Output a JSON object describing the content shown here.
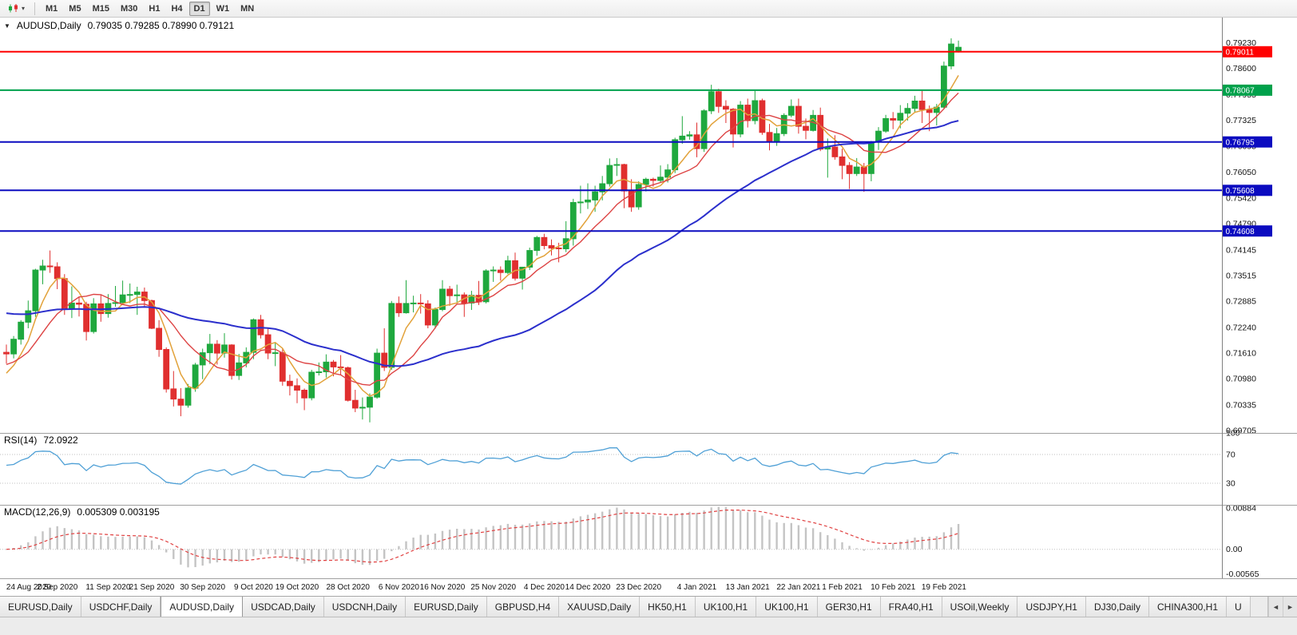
{
  "icons": {
    "dropdown_caret": "▾",
    "title_caret": "▼",
    "scroll_left": "◄",
    "scroll_right": "►"
  },
  "colors": {
    "bull": "#1fa83e",
    "bear": "#e02f2f",
    "axis_text": "#111111",
    "separator": "#a0a0a0"
  },
  "toolbar": {
    "timeframes": [
      {
        "label": "M1"
      },
      {
        "label": "M5"
      },
      {
        "label": "M15"
      },
      {
        "label": "M30"
      },
      {
        "label": "H1"
      },
      {
        "label": "H4"
      },
      {
        "label": "D1",
        "active": true
      },
      {
        "label": "W1"
      },
      {
        "label": "MN"
      }
    ]
  },
  "chart_data": {
    "type": "candlestick",
    "title": "AUDUSD,Daily",
    "quote_line": "0.79035 0.79285 0.78990 0.79121",
    "open": "0.79035",
    "high": "0.79285",
    "low": "0.78990",
    "close": "0.79121",
    "scale": {
      "p_max": 0.7985,
      "p_min": 0.6965
    },
    "y_axis_labels": [
      "0.79230",
      "0.78600",
      "0.77955",
      "0.77325",
      "0.76695",
      "0.76050",
      "0.75420",
      "0.74790",
      "0.74145",
      "0.73515",
      "0.72885",
      "0.72240",
      "0.71610",
      "0.70980",
      "0.70335",
      "0.69705"
    ],
    "hlines": [
      {
        "price": 0.79011,
        "label": "0.79011",
        "color": "#ff0000"
      },
      {
        "price": 0.78067,
        "label": "0.78067",
        "color": "#00a14b"
      },
      {
        "price": 0.76795,
        "label": "0.76795",
        "color": "#0b0bc0"
      },
      {
        "price": 0.75608,
        "label": "0.75608",
        "color": "#0b0bc0"
      },
      {
        "price": 0.74608,
        "label": "0.74608",
        "color": "#0b0bc0"
      }
    ],
    "moving_averages": [
      {
        "period": 5,
        "color": "#e2a23a",
        "width": 1.5,
        "left_start": 0.71
      },
      {
        "period": 10,
        "color": "#dd4343",
        "width": 1.4,
        "left_start": 0.713
      },
      {
        "period": 35,
        "color": "#2b2fcc",
        "width": 2,
        "left_start": 0.7262
      }
    ],
    "date_labels": [
      [
        "24 Aug 2020",
        0
      ],
      [
        "2 Sep 2020",
        7
      ],
      [
        "11 Sep 2020",
        14
      ],
      [
        "21 Sep 2020",
        20
      ],
      [
        "30 Sep 2020",
        27
      ],
      [
        "9 Oct 2020",
        34
      ],
      [
        "19 Oct 2020",
        40
      ],
      [
        "28 Oct 2020",
        47
      ],
      [
        "6 Nov 2020",
        54
      ],
      [
        "16 Nov 2020",
        60
      ],
      [
        "25 Nov 2020",
        67
      ],
      [
        "4 Dec 2020",
        74
      ],
      [
        "14 Dec 2020",
        80
      ],
      [
        "23 Dec 2020",
        87
      ],
      [
        "4 Jan 2021",
        95
      ],
      [
        "13 Jan 2021",
        102
      ],
      [
        "22 Jan 2021",
        109
      ],
      [
        "1 Feb 2021",
        115
      ],
      [
        "10 Feb 2021",
        122
      ],
      [
        "19 Feb 2021",
        129
      ]
    ],
    "candles": [
      [
        0.7163,
        0.7182,
        0.7135,
        0.7159
      ],
      [
        0.7159,
        0.7203,
        0.7148,
        0.7195
      ],
      [
        0.7195,
        0.7242,
        0.7182,
        0.7237
      ],
      [
        0.7237,
        0.729,
        0.7222,
        0.7265
      ],
      [
        0.7265,
        0.7368,
        0.725,
        0.7365
      ],
      [
        0.7365,
        0.739,
        0.733,
        0.7375
      ],
      [
        0.7375,
        0.7413,
        0.7358,
        0.7373
      ],
      [
        0.7373,
        0.7384,
        0.7318,
        0.7344
      ],
      [
        0.7344,
        0.7355,
        0.7255,
        0.727
      ],
      [
        0.727,
        0.7325,
        0.7247,
        0.7284
      ],
      [
        0.7284,
        0.73,
        0.7251,
        0.7281
      ],
      [
        0.7281,
        0.7287,
        0.7192,
        0.7214
      ],
      [
        0.7214,
        0.7296,
        0.7209,
        0.7282
      ],
      [
        0.7282,
        0.7304,
        0.7238,
        0.7258
      ],
      [
        0.7258,
        0.7306,
        0.7248,
        0.7283
      ],
      [
        0.7283,
        0.7326,
        0.7275,
        0.7285
      ],
      [
        0.7285,
        0.7339,
        0.7283,
        0.7304
      ],
      [
        0.7304,
        0.7332,
        0.7284,
        0.7305
      ],
      [
        0.7305,
        0.7324,
        0.7255,
        0.7311
      ],
      [
        0.7311,
        0.7322,
        0.7276,
        0.729
      ],
      [
        0.729,
        0.7292,
        0.722,
        0.7222
      ],
      [
        0.7222,
        0.7242,
        0.7152,
        0.717
      ],
      [
        0.717,
        0.7175,
        0.7064,
        0.7073
      ],
      [
        0.7073,
        0.7117,
        0.703,
        0.7048
      ],
      [
        0.7048,
        0.7075,
        0.7006,
        0.7033
      ],
      [
        0.7033,
        0.7085,
        0.7027,
        0.7075
      ],
      [
        0.7075,
        0.7137,
        0.7066,
        0.7132
      ],
      [
        0.7132,
        0.7172,
        0.7097,
        0.7162
      ],
      [
        0.7162,
        0.7208,
        0.7134,
        0.7183
      ],
      [
        0.7183,
        0.7193,
        0.7133,
        0.7161
      ],
      [
        0.7161,
        0.721,
        0.715,
        0.7181
      ],
      [
        0.7181,
        0.7183,
        0.7096,
        0.7106
      ],
      [
        0.7106,
        0.7159,
        0.7095,
        0.7137
      ],
      [
        0.7137,
        0.7175,
        0.7126,
        0.7163
      ],
      [
        0.7163,
        0.7246,
        0.7146,
        0.7243
      ],
      [
        0.7243,
        0.7255,
        0.7197,
        0.7206
      ],
      [
        0.7206,
        0.7222,
        0.7146,
        0.7161
      ],
      [
        0.7161,
        0.7186,
        0.7129,
        0.7162
      ],
      [
        0.7162,
        0.7172,
        0.7081,
        0.7092
      ],
      [
        0.7092,
        0.7108,
        0.7057,
        0.7081
      ],
      [
        0.7081,
        0.7099,
        0.7038,
        0.707
      ],
      [
        0.707,
        0.7074,
        0.7021,
        0.7051
      ],
      [
        0.7051,
        0.712,
        0.7045,
        0.7114
      ],
      [
        0.7114,
        0.7138,
        0.7106,
        0.7115
      ],
      [
        0.7115,
        0.7158,
        0.7101,
        0.7139
      ],
      [
        0.7139,
        0.7144,
        0.7104,
        0.7127
      ],
      [
        0.7127,
        0.7156,
        0.7107,
        0.7125
      ],
      [
        0.7125,
        0.7128,
        0.7042,
        0.7045
      ],
      [
        0.7045,
        0.7071,
        0.7016,
        0.7026
      ],
      [
        0.7026,
        0.7052,
        0.6998,
        0.7028
      ],
      [
        0.7028,
        0.7062,
        0.6991,
        0.7053
      ],
      [
        0.7053,
        0.7172,
        0.7049,
        0.7161
      ],
      [
        0.7161,
        0.7222,
        0.7117,
        0.7126
      ],
      [
        0.7126,
        0.7289,
        0.712,
        0.7283
      ],
      [
        0.7283,
        0.73,
        0.725,
        0.726
      ],
      [
        0.726,
        0.734,
        0.7258,
        0.7283
      ],
      [
        0.7283,
        0.7302,
        0.7261,
        0.7284
      ],
      [
        0.7284,
        0.7306,
        0.7258,
        0.7282
      ],
      [
        0.7282,
        0.7291,
        0.7222,
        0.723
      ],
      [
        0.723,
        0.7273,
        0.7221,
        0.7268
      ],
      [
        0.7268,
        0.734,
        0.7264,
        0.7318
      ],
      [
        0.7318,
        0.7326,
        0.7277,
        0.7302
      ],
      [
        0.7302,
        0.7329,
        0.7286,
        0.7304
      ],
      [
        0.7304,
        0.731,
        0.725,
        0.7284
      ],
      [
        0.7284,
        0.7314,
        0.7267,
        0.7303
      ],
      [
        0.7303,
        0.7338,
        0.7279,
        0.7287
      ],
      [
        0.7287,
        0.7367,
        0.7283,
        0.7363
      ],
      [
        0.7363,
        0.7374,
        0.7336,
        0.7365
      ],
      [
        0.7365,
        0.7374,
        0.7339,
        0.7359
      ],
      [
        0.7359,
        0.74,
        0.7355,
        0.7388
      ],
      [
        0.7388,
        0.7408,
        0.7339,
        0.7345
      ],
      [
        0.7345,
        0.7373,
        0.7317,
        0.7372
      ],
      [
        0.7372,
        0.742,
        0.7365,
        0.7413
      ],
      [
        0.7413,
        0.7449,
        0.74,
        0.7445
      ],
      [
        0.7445,
        0.7454,
        0.7416,
        0.7425
      ],
      [
        0.7425,
        0.744,
        0.7401,
        0.7419
      ],
      [
        0.7419,
        0.7432,
        0.7384,
        0.7417
      ],
      [
        0.7417,
        0.7485,
        0.7409,
        0.7442
      ],
      [
        0.7442,
        0.754,
        0.7425,
        0.7531
      ],
      [
        0.7531,
        0.7572,
        0.7504,
        0.7532
      ],
      [
        0.7532,
        0.7578,
        0.7515,
        0.7537
      ],
      [
        0.7537,
        0.7572,
        0.7508,
        0.7557
      ],
      [
        0.7557,
        0.7596,
        0.7536,
        0.7577
      ],
      [
        0.7577,
        0.7639,
        0.757,
        0.7622
      ],
      [
        0.7622,
        0.764,
        0.7596,
        0.7624
      ],
      [
        0.7624,
        0.7626,
        0.7517,
        0.7559
      ],
      [
        0.7559,
        0.7588,
        0.7508,
        0.752
      ],
      [
        0.752,
        0.7583,
        0.7513,
        0.7575
      ],
      [
        0.7575,
        0.7592,
        0.7558,
        0.7588
      ],
      [
        0.7588,
        0.7592,
        0.757,
        0.7585
      ],
      [
        0.7585,
        0.7622,
        0.758,
        0.7593
      ],
      [
        0.7593,
        0.7625,
        0.758,
        0.7611
      ],
      [
        0.7611,
        0.769,
        0.7603,
        0.7685
      ],
      [
        0.7685,
        0.7743,
        0.7675,
        0.7694
      ],
      [
        0.7694,
        0.7706,
        0.7685,
        0.7697
      ],
      [
        0.7697,
        0.7727,
        0.7642,
        0.7663
      ],
      [
        0.7663,
        0.776,
        0.7655,
        0.7756
      ],
      [
        0.7756,
        0.782,
        0.7748,
        0.7803
      ],
      [
        0.7803,
        0.781,
        0.7751,
        0.7767
      ],
      [
        0.7767,
        0.7782,
        0.7726,
        0.776
      ],
      [
        0.776,
        0.7763,
        0.7666,
        0.7699
      ],
      [
        0.7699,
        0.778,
        0.7691,
        0.777
      ],
      [
        0.777,
        0.7786,
        0.7715,
        0.7732
      ],
      [
        0.7732,
        0.7805,
        0.7723,
        0.7781
      ],
      [
        0.7781,
        0.7786,
        0.7697,
        0.7703
      ],
      [
        0.7703,
        0.7724,
        0.7659,
        0.7679
      ],
      [
        0.7679,
        0.7714,
        0.767,
        0.77
      ],
      [
        0.77,
        0.775,
        0.7694,
        0.7745
      ],
      [
        0.7745,
        0.7784,
        0.774,
        0.7767
      ],
      [
        0.7767,
        0.7786,
        0.77,
        0.7718
      ],
      [
        0.7718,
        0.7737,
        0.7686,
        0.7708
      ],
      [
        0.7708,
        0.7758,
        0.7705,
        0.7745
      ],
      [
        0.7745,
        0.7764,
        0.7657,
        0.7662
      ],
      [
        0.7662,
        0.7688,
        0.7592,
        0.7667
      ],
      [
        0.7667,
        0.7696,
        0.7636,
        0.7643
      ],
      [
        0.7643,
        0.7663,
        0.7588,
        0.7622
      ],
      [
        0.7622,
        0.763,
        0.7564,
        0.7602
      ],
      [
        0.7602,
        0.764,
        0.7596,
        0.7618
      ],
      [
        0.7618,
        0.7628,
        0.7557,
        0.7602
      ],
      [
        0.7602,
        0.7682,
        0.7583,
        0.768
      ],
      [
        0.768,
        0.7716,
        0.766,
        0.7706
      ],
      [
        0.7706,
        0.7746,
        0.7702,
        0.7737
      ],
      [
        0.7737,
        0.7753,
        0.7711,
        0.7733
      ],
      [
        0.7733,
        0.777,
        0.7713,
        0.775
      ],
      [
        0.775,
        0.7775,
        0.7732,
        0.7762
      ],
      [
        0.7762,
        0.7793,
        0.7752,
        0.778
      ],
      [
        0.778,
        0.7805,
        0.7726,
        0.7759
      ],
      [
        0.7759,
        0.7769,
        0.7706,
        0.7752
      ],
      [
        0.7752,
        0.7773,
        0.772,
        0.7765
      ],
      [
        0.7765,
        0.7877,
        0.776,
        0.7866
      ],
      [
        0.7866,
        0.7934,
        0.7858,
        0.792
      ],
      [
        0.79035,
        0.79285,
        0.7899,
        0.79121
      ]
    ],
    "indicators": {
      "rsi": {
        "title": "RSI(14)",
        "value": "72.0922",
        "period": 14,
        "levels": [
          "100",
          "70",
          "30"
        ],
        "line_color": "#4fa0d6",
        "scale_max": 100,
        "scale_min": 0
      },
      "macd": {
        "title": "MACD(12,26,9)",
        "values": "0.005309 0.003195",
        "fast": 12,
        "slow": 26,
        "signal_period": 9,
        "axis_labels": [
          "0.00884",
          "0.00",
          "-0.00565"
        ],
        "hist_color": "#c4c4c4",
        "signal_color": "#e04040",
        "scale_max": 0.0095,
        "scale_min": -0.0062
      }
    }
  },
  "tabs": {
    "items": [
      "EURUSD,Daily",
      "USDCHF,Daily",
      "AUDUSD,Daily",
      "USDCAD,Daily",
      "USDCNH,Daily",
      "EURUSD,Daily",
      "GBPUSD,H4",
      "XAUUSD,Daily",
      "HK50,H1",
      "UK100,H1",
      "UK100,H1",
      "GER30,H1",
      "FRA40,H1",
      "USOil,Weekly",
      "USDJPY,H1",
      "DJ30,Daily",
      "CHINA300,H1",
      "U"
    ],
    "active_index": 2
  }
}
